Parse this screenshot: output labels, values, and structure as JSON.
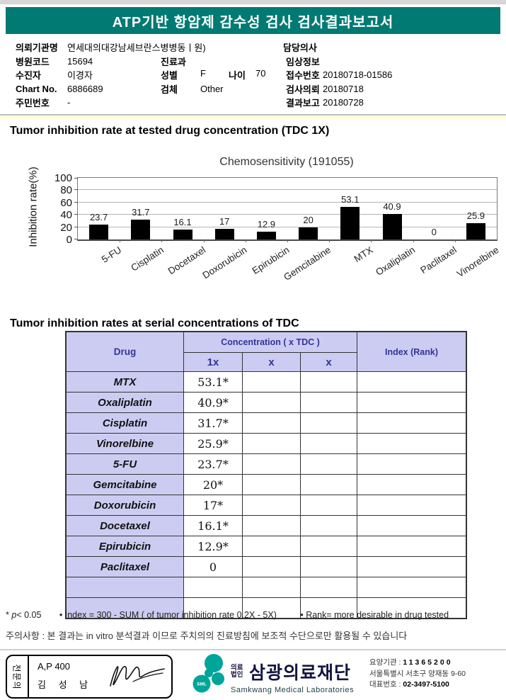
{
  "header": {
    "title": "ATP기반 항암제 감수성 검사 검사결과보고서"
  },
  "info": {
    "rows": [
      {
        "l1": "의뢰기관명",
        "v1": "연세대의대강남세브란스병병동ㅣ원)",
        "l3": "담당의사",
        "v3": ""
      },
      {
        "l1": "병원코드",
        "v1": "15694",
        "l2": "진료과",
        "v2": "",
        "l3": "임상정보",
        "v3": ""
      },
      {
        "l1": "수진자",
        "v1": "이경자",
        "l2": "성별",
        "v2": "F",
        "l2b": "나이",
        "v2b": "70",
        "l3": "접수번호",
        "v3": "20180718-01586"
      },
      {
        "l1": "Chart No.",
        "v1": "6886689",
        "l2": "검체",
        "v2": "Other",
        "l3": "검사의뢰",
        "v3": "20180718"
      },
      {
        "l1": "주민번호",
        "v1": "-",
        "l3": "결과보고",
        "v3": "20180728"
      }
    ]
  },
  "sections": {
    "chart_title": "Tumor inhibition rate at tested drug concentration (TDC 1X)",
    "table_title": "Tumor inhibition rates at serial concentrations of TDC"
  },
  "chart_data": {
    "type": "bar",
    "title": "Chemosensitivity (191055)",
    "ylabel": "Inhibition rate(%)",
    "xlabel": "",
    "ylim": [
      0,
      100
    ],
    "yticks": [
      0,
      20,
      40,
      60,
      80,
      100
    ],
    "grid": true,
    "legend": false,
    "bar_color": "#000000",
    "categories": [
      "5-FU",
      "Cisplatin",
      "Docetaxel",
      "Doxorubicin",
      "Epirubicin",
      "Gemcitabine",
      "MTX",
      "Oxaliplatin",
      "Paclitaxel",
      "Vinorelbine"
    ],
    "values": [
      23.7,
      31.7,
      16.1,
      17,
      12.9,
      20,
      53.1,
      40.9,
      0,
      25.9
    ]
  },
  "table": {
    "header": {
      "drug": "Drug",
      "concentration": "Concentration ( x TDC )",
      "sub": [
        "1x",
        "x",
        "x"
      ],
      "index": "Index (Rank)"
    },
    "rows": [
      {
        "drug": "MTX",
        "c1": "53.1*",
        "c2": "",
        "c3": "",
        "index": ""
      },
      {
        "drug": "Oxaliplatin",
        "c1": "40.9*",
        "c2": "",
        "c3": "",
        "index": ""
      },
      {
        "drug": "Cisplatin",
        "c1": "31.7*",
        "c2": "",
        "c3": "",
        "index": ""
      },
      {
        "drug": "Vinorelbine",
        "c1": "25.9*",
        "c2": "",
        "c3": "",
        "index": ""
      },
      {
        "drug": "5-FU",
        "c1": "23.7*",
        "c2": "",
        "c3": "",
        "index": ""
      },
      {
        "drug": "Gemcitabine",
        "c1": "20*",
        "c2": "",
        "c3": "",
        "index": ""
      },
      {
        "drug": "Doxorubicin",
        "c1": "17*",
        "c2": "",
        "c3": "",
        "index": ""
      },
      {
        "drug": "Docetaxel",
        "c1": "16.1*",
        "c2": "",
        "c3": "",
        "index": ""
      },
      {
        "drug": "Epirubicin",
        "c1": "12.9*",
        "c2": "",
        "c3": "",
        "index": ""
      },
      {
        "drug": "Paclitaxel",
        "c1": "0",
        "c2": "",
        "c3": "",
        "index": ""
      },
      {
        "drug": "",
        "c1": "",
        "c2": "",
        "c3": "",
        "index": ""
      },
      {
        "drug": "",
        "c1": "",
        "c2": "",
        "c3": "",
        "index": ""
      }
    ]
  },
  "footnotes": {
    "sig_star": "*",
    "sig_p": "p",
    "sig_rest": "< 0.05",
    "note_index": "• Index = 300 - SUM ( of tumor inhibition rate 0.2X  -  5X)",
    "note_rank": "• Rank= more desirable in drug tested",
    "caution": "주의사항 : 본 결과는 in vitro 분석결과 이므로 주치의의 진료방침에 보조적 수단으로만 활용될 수 있습니다"
  },
  "footer": {
    "stamp": {
      "role": "전문의",
      "code": "A,P 400",
      "name": "김 성 남"
    },
    "logo": {
      "mark_text": "SML",
      "org_type_1": "의료",
      "org_type_2": "법인",
      "org_name": "삼광의료재단",
      "org_name_en": "Samkwang Medical Laboratories"
    },
    "contact": {
      "line1_label": "요양기관 :",
      "line1_value": "11365200",
      "line2": "서울특별시 서초구 양재동 9-60",
      "line3_label": "대표번호 :",
      "line3_value": "02-3497-5100"
    }
  },
  "colors": {
    "header_teal": "#007a72",
    "logo_teal": "#00a59a",
    "table_header_bg": "#ccccf2",
    "table_header_text": "#333399",
    "bar_color": "#000000",
    "separator_yellow": "#ffffd8"
  }
}
